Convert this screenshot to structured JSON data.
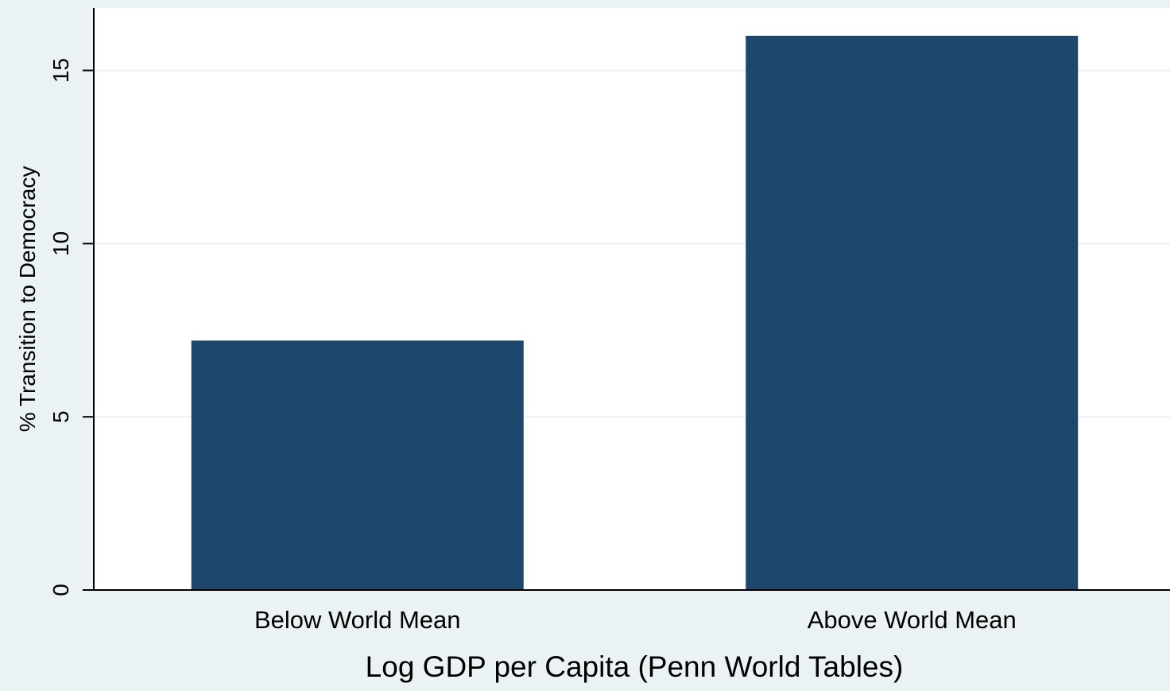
{
  "chart_data": {
    "type": "bar",
    "title": "",
    "categories": [
      "Below World Mean",
      "Above World Mean"
    ],
    "values": [
      7.2,
      16.0
    ],
    "xlabel": "Log GDP per Capita (Penn World Tables)",
    "ylabel": "% Transition to Democracy",
    "ylim": [
      0,
      16.4
    ],
    "yticks": [
      0,
      5,
      10,
      15
    ],
    "grid": true,
    "colors": {
      "bar": "#1d476c",
      "plot_background": "#ffffff",
      "outer_background": "#eaf2f3",
      "gridline": "#eaf2f3",
      "axis": "#000000"
    }
  }
}
